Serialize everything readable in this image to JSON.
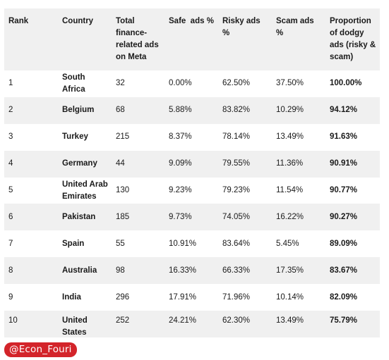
{
  "headers": {
    "rank": "Rank",
    "country": "Country",
    "total": "Total finance-related ads on Meta",
    "safe": "Safe  ads %",
    "risky": "Risky ads %",
    "scam": "Scam ads %",
    "proportion": "Proportion of dodgy ads (risky & scam)"
  },
  "rows": [
    {
      "rank": "1",
      "country": "South Africa",
      "total": "32",
      "safe": "0.00%",
      "risky": "62.50%",
      "scam": "37.50%",
      "proportion": "100.00%"
    },
    {
      "rank": "2",
      "country": "Belgium",
      "total": "68",
      "safe": "5.88%",
      "risky": "83.82%",
      "scam": "10.29%",
      "proportion": "94.12%"
    },
    {
      "rank": "3",
      "country": "Turkey",
      "total": "215",
      "safe": "8.37%",
      "risky": "78.14%",
      "scam": "13.49%",
      "proportion": "91.63%"
    },
    {
      "rank": "4",
      "country": "Germany",
      "total": "44",
      "safe": "9.09%",
      "risky": "79.55%",
      "scam": "11.36%",
      "proportion": "90.91%"
    },
    {
      "rank": "5",
      "country": "United Arab Emirates",
      "total": "130",
      "safe": "9.23%",
      "risky": "79.23%",
      "scam": "11.54%",
      "proportion": "90.77%"
    },
    {
      "rank": "6",
      "country": "Pakistan",
      "total": "185",
      "safe": "9.73%",
      "risky": "74.05%",
      "scam": "16.22%",
      "proportion": "90.27%"
    },
    {
      "rank": "7",
      "country": "Spain",
      "total": "55",
      "safe": "10.91%",
      "risky": "83.64%",
      "scam": "5.45%",
      "proportion": "89.09%"
    },
    {
      "rank": "8",
      "country": "Australia",
      "total": "98",
      "safe": "16.33%",
      "risky": "66.33%",
      "scam": "17.35%",
      "proportion": "83.67%"
    },
    {
      "rank": "9",
      "country": "India",
      "total": "296",
      "safe": "17.91%",
      "risky": "71.96%",
      "scam": "10.14%",
      "proportion": "82.09%"
    },
    {
      "rank": "10",
      "country": "United States",
      "total": "252",
      "safe": "24.21%",
      "risky": "62.30%",
      "scam": "13.49%",
      "proportion": "75.79%"
    }
  ],
  "watermark": "@Econ_Fouri",
  "colors": {
    "header_bg": "#f0f0f0",
    "stripe_bg": "#f0f0f0",
    "watermark_bg": "#d3242a"
  }
}
